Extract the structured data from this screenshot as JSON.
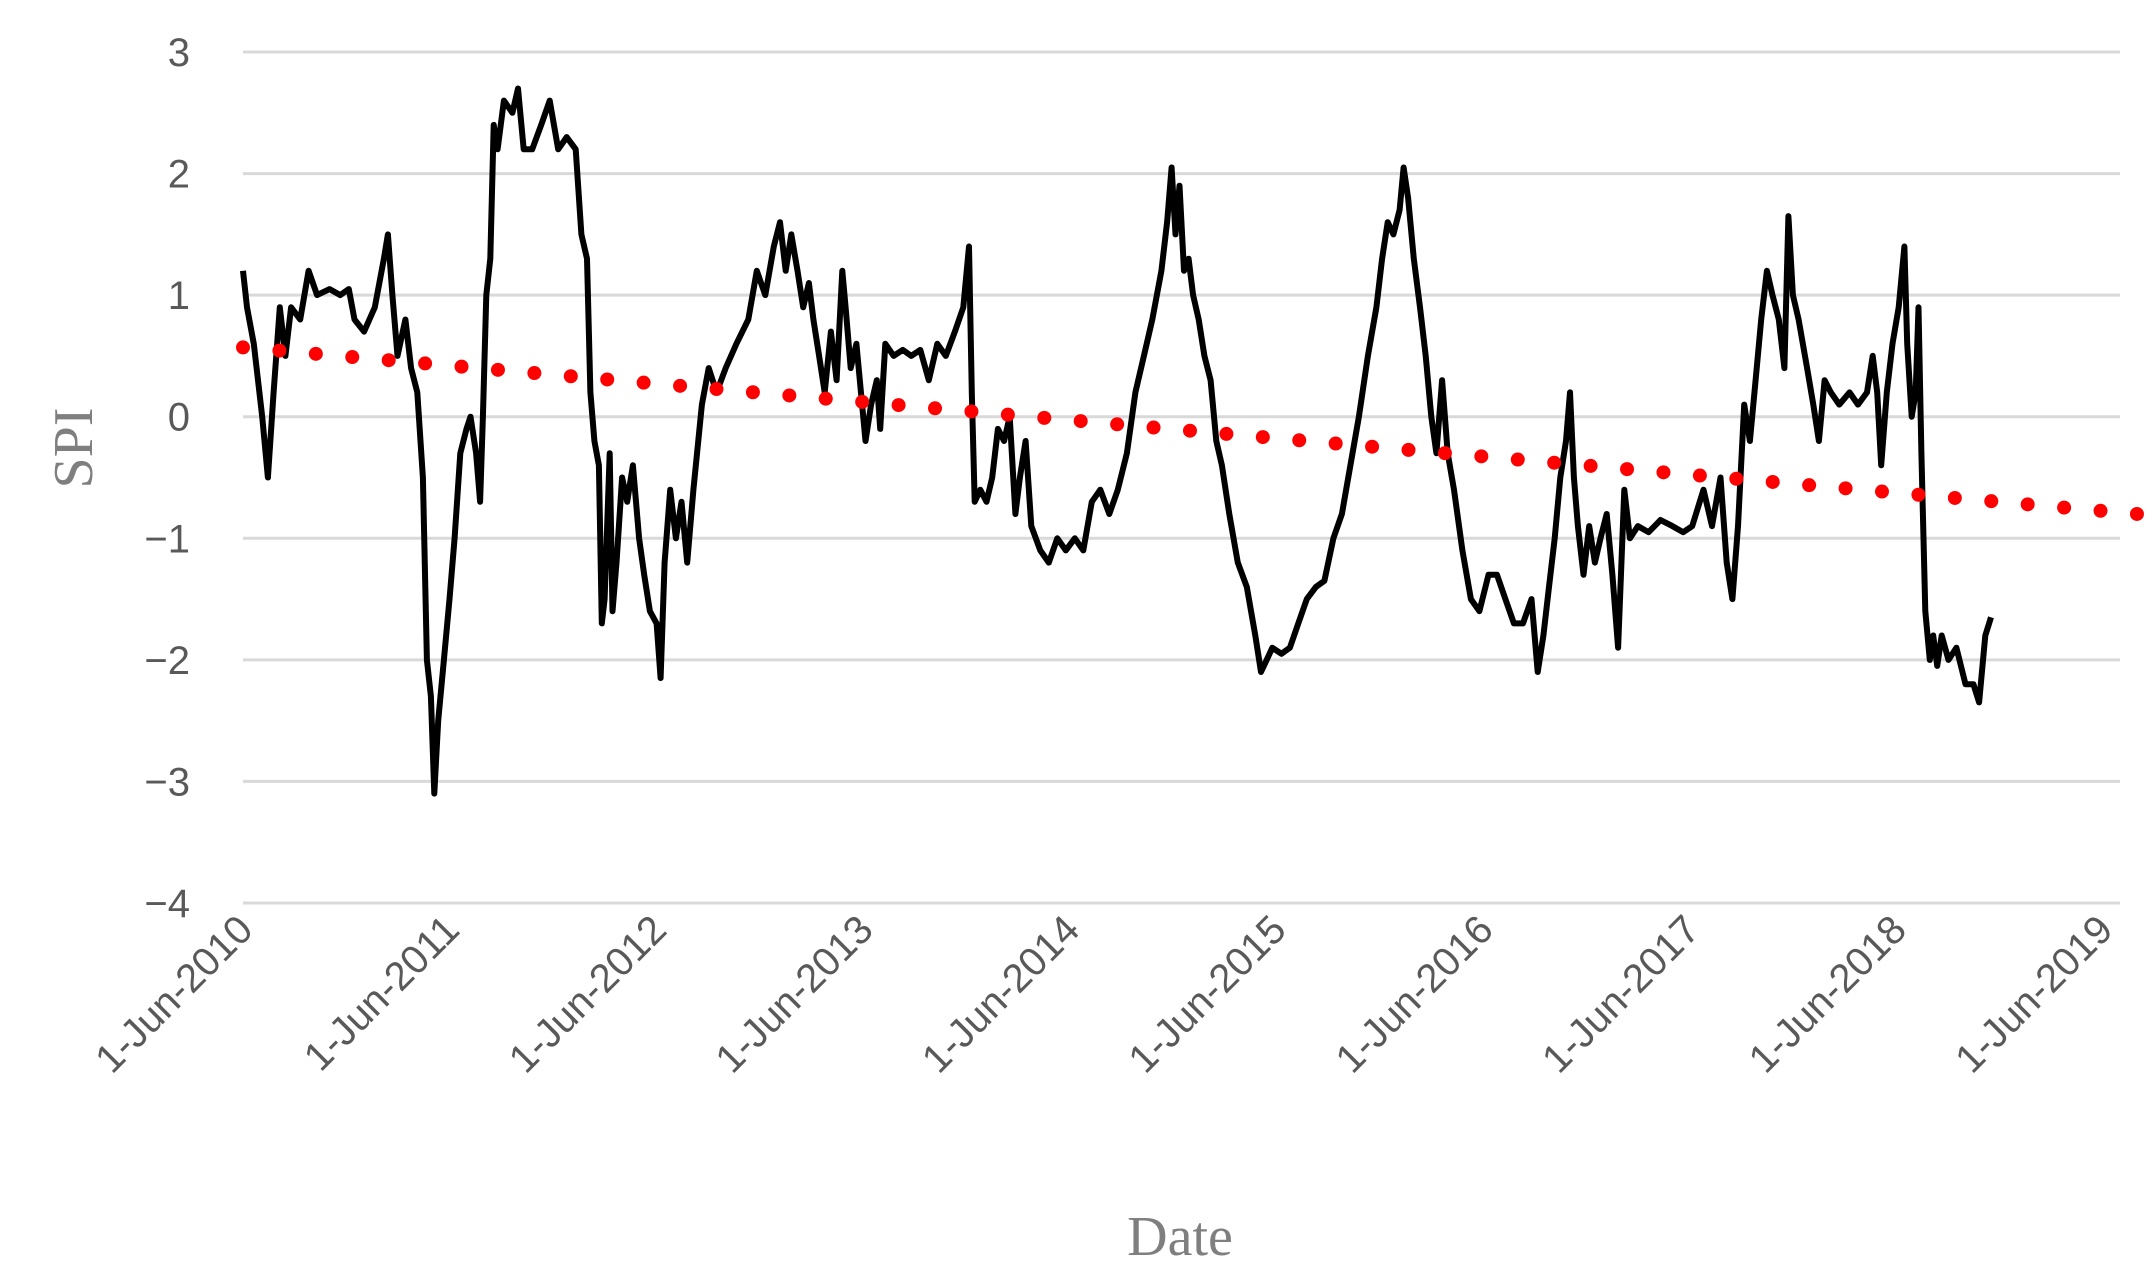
{
  "chart_data": {
    "type": "line",
    "title": "",
    "xlabel": "Date",
    "ylabel": "SPI",
    "ylim": [
      -4,
      3
    ],
    "yticks": [
      "3",
      "2",
      "1",
      "0",
      "−1",
      "−2",
      "−3",
      "−4"
    ],
    "xlim": [
      "2010-06-01",
      "2019-07-31"
    ],
    "xticks": [
      {
        "date": "2010-06-01",
        "label": "1-Jun-2010"
      },
      {
        "date": "2011-06-01",
        "label": "1-Jun-2011"
      },
      {
        "date": "2012-06-01",
        "label": "1-Jun-2012"
      },
      {
        "date": "2013-06-01",
        "label": "1-Jun-2013"
      },
      {
        "date": "2014-06-01",
        "label": "1-Jun-2014"
      },
      {
        "date": "2015-06-01",
        "label": "1-Jun-2015"
      },
      {
        "date": "2016-06-01",
        "label": "1-Jun-2016"
      },
      {
        "date": "2017-06-01",
        "label": "1-Jun-2017"
      },
      {
        "date": "2018-06-01",
        "label": "1-Jun-2018"
      },
      {
        "date": "2019-06-01",
        "label": "1-Jun-2019"
      }
    ],
    "grid": "horizontal",
    "legend": "none",
    "series": [
      {
        "style": "solid",
        "color": "#000000",
        "points": [
          [
            "2010-06-01",
            1.2
          ],
          [
            "2010-06-08",
            0.9
          ],
          [
            "2010-06-20",
            0.6
          ],
          [
            "2010-07-05",
            0.0
          ],
          [
            "2010-07-15",
            -0.5
          ],
          [
            "2010-07-25",
            0.2
          ],
          [
            "2010-08-05",
            0.9
          ],
          [
            "2010-08-15",
            0.5
          ],
          [
            "2010-08-25",
            0.9
          ],
          [
            "2010-09-10",
            0.8
          ],
          [
            "2010-09-25",
            1.2
          ],
          [
            "2010-10-10",
            1.0
          ],
          [
            "2010-11-01",
            1.05
          ],
          [
            "2010-11-20",
            1.0
          ],
          [
            "2010-12-05",
            1.05
          ],
          [
            "2010-12-15",
            0.8
          ],
          [
            "2011-01-01",
            0.7
          ],
          [
            "2011-01-20",
            0.9
          ],
          [
            "2011-02-05",
            1.3
          ],
          [
            "2011-02-12",
            1.5
          ],
          [
            "2011-02-20",
            1.0
          ],
          [
            "2011-03-01",
            0.5
          ],
          [
            "2011-03-15",
            0.8
          ],
          [
            "2011-03-25",
            0.4
          ],
          [
            "2011-04-05",
            0.2
          ],
          [
            "2011-04-15",
            -0.5
          ],
          [
            "2011-04-22",
            -2.0
          ],
          [
            "2011-04-29",
            -2.3
          ],
          [
            "2011-05-05",
            -3.1
          ],
          [
            "2011-05-12",
            -2.5
          ],
          [
            "2011-05-22",
            -2.0
          ],
          [
            "2011-06-01",
            -1.5
          ],
          [
            "2011-06-10",
            -1.0
          ],
          [
            "2011-06-20",
            -0.3
          ],
          [
            "2011-07-01",
            -0.1
          ],
          [
            "2011-07-08",
            0.0
          ],
          [
            "2011-07-18",
            -0.3
          ],
          [
            "2011-07-25",
            -0.7
          ],
          [
            "2011-07-30",
            0.0
          ],
          [
            "2011-08-05",
            1.0
          ],
          [
            "2011-08-12",
            1.3
          ],
          [
            "2011-08-18",
            2.4
          ],
          [
            "2011-08-25",
            2.2
          ],
          [
            "2011-09-05",
            2.6
          ],
          [
            "2011-09-20",
            2.5
          ],
          [
            "2011-09-30",
            2.7
          ],
          [
            "2011-10-10",
            2.2
          ],
          [
            "2011-10-25",
            2.2
          ],
          [
            "2011-11-10",
            2.4
          ],
          [
            "2011-11-25",
            2.6
          ],
          [
            "2011-12-10",
            2.2
          ],
          [
            "2011-12-25",
            2.3
          ],
          [
            "2012-01-10",
            2.2
          ],
          [
            "2012-01-20",
            1.5
          ],
          [
            "2012-01-30",
            1.3
          ],
          [
            "2012-02-05",
            0.2
          ],
          [
            "2012-02-12",
            -0.2
          ],
          [
            "2012-02-20",
            -0.4
          ],
          [
            "2012-02-25",
            -1.7
          ],
          [
            "2012-03-01",
            -1.5
          ],
          [
            "2012-03-10",
            -0.3
          ],
          [
            "2012-03-15",
            -1.6
          ],
          [
            "2012-03-22",
            -1.2
          ],
          [
            "2012-04-01",
            -0.5
          ],
          [
            "2012-04-10",
            -0.7
          ],
          [
            "2012-04-20",
            -0.4
          ],
          [
            "2012-05-01",
            -1.0
          ],
          [
            "2012-05-10",
            -1.3
          ],
          [
            "2012-05-20",
            -1.6
          ],
          [
            "2012-06-01",
            -1.7
          ],
          [
            "2012-06-08",
            -2.15
          ],
          [
            "2012-06-15",
            -1.2
          ],
          [
            "2012-06-25",
            -0.6
          ],
          [
            "2012-07-05",
            -1.0
          ],
          [
            "2012-07-15",
            -0.7
          ],
          [
            "2012-07-25",
            -1.2
          ],
          [
            "2012-08-05",
            -0.6
          ],
          [
            "2012-08-20",
            0.1
          ],
          [
            "2012-09-01",
            0.4
          ],
          [
            "2012-09-15",
            0.2
          ],
          [
            "2012-10-01",
            0.4
          ],
          [
            "2012-10-20",
            0.6
          ],
          [
            "2012-11-10",
            0.8
          ],
          [
            "2012-11-25",
            1.2
          ],
          [
            "2012-12-10",
            1.0
          ],
          [
            "2012-12-25",
            1.4
          ],
          [
            "2013-01-05",
            1.6
          ],
          [
            "2013-01-15",
            1.2
          ],
          [
            "2013-01-25",
            1.5
          ],
          [
            "2013-02-05",
            1.2
          ],
          [
            "2013-02-15",
            0.9
          ],
          [
            "2013-02-25",
            1.1
          ],
          [
            "2013-03-05",
            0.8
          ],
          [
            "2013-03-15",
            0.5
          ],
          [
            "2013-03-25",
            0.2
          ],
          [
            "2013-04-05",
            0.7
          ],
          [
            "2013-04-15",
            0.3
          ],
          [
            "2013-04-25",
            1.2
          ],
          [
            "2013-05-01",
            0.9
          ],
          [
            "2013-05-10",
            0.4
          ],
          [
            "2013-05-20",
            0.6
          ],
          [
            "2013-05-30",
            0.1
          ],
          [
            "2013-06-05",
            -0.2
          ],
          [
            "2013-06-15",
            0.1
          ],
          [
            "2013-06-25",
            0.3
          ],
          [
            "2013-07-01",
            -0.1
          ],
          [
            "2013-07-10",
            0.6
          ],
          [
            "2013-07-25",
            0.5
          ],
          [
            "2013-08-10",
            0.55
          ],
          [
            "2013-08-25",
            0.5
          ],
          [
            "2013-09-10",
            0.55
          ],
          [
            "2013-09-25",
            0.3
          ],
          [
            "2013-10-10",
            0.6
          ],
          [
            "2013-10-25",
            0.5
          ],
          [
            "2013-11-10",
            0.7
          ],
          [
            "2013-11-25",
            0.9
          ],
          [
            "2013-12-05",
            1.4
          ],
          [
            "2013-12-10",
            0.2
          ],
          [
            "2013-12-15",
            -0.7
          ],
          [
            "2013-12-25",
            -0.6
          ],
          [
            "2014-01-05",
            -0.7
          ],
          [
            "2014-01-15",
            -0.5
          ],
          [
            "2014-01-25",
            -0.1
          ],
          [
            "2014-02-05",
            -0.2
          ],
          [
            "2014-02-15",
            0.0
          ],
          [
            "2014-02-25",
            -0.8
          ],
          [
            "2014-03-05",
            -0.5
          ],
          [
            "2014-03-15",
            -0.2
          ],
          [
            "2014-03-25",
            -0.9
          ],
          [
            "2014-04-10",
            -1.1
          ],
          [
            "2014-04-25",
            -1.2
          ],
          [
            "2014-05-10",
            -1.0
          ],
          [
            "2014-05-25",
            -1.1
          ],
          [
            "2014-06-10",
            -1.0
          ],
          [
            "2014-06-25",
            -1.1
          ],
          [
            "2014-07-10",
            -0.7
          ],
          [
            "2014-07-25",
            -0.6
          ],
          [
            "2014-08-10",
            -0.8
          ],
          [
            "2014-08-25",
            -0.6
          ],
          [
            "2014-09-10",
            -0.3
          ],
          [
            "2014-09-25",
            0.2
          ],
          [
            "2014-10-10",
            0.5
          ],
          [
            "2014-10-25",
            0.8
          ],
          [
            "2014-11-10",
            1.2
          ],
          [
            "2014-11-20",
            1.6
          ],
          [
            "2014-11-28",
            2.05
          ],
          [
            "2014-12-05",
            1.5
          ],
          [
            "2014-12-12",
            1.9
          ],
          [
            "2014-12-20",
            1.2
          ],
          [
            "2014-12-28",
            1.3
          ],
          [
            "2015-01-05",
            1.0
          ],
          [
            "2015-01-15",
            0.8
          ],
          [
            "2015-01-25",
            0.5
          ],
          [
            "2015-02-05",
            0.3
          ],
          [
            "2015-02-15",
            -0.2
          ],
          [
            "2015-02-25",
            -0.4
          ],
          [
            "2015-03-10",
            -0.8
          ],
          [
            "2015-03-25",
            -1.2
          ],
          [
            "2015-04-10",
            -1.4
          ],
          [
            "2015-04-25",
            -1.8
          ],
          [
            "2015-05-05",
            -2.1
          ],
          [
            "2015-05-15",
            -2.0
          ],
          [
            "2015-05-25",
            -1.9
          ],
          [
            "2015-06-10",
            -1.95
          ],
          [
            "2015-06-25",
            -1.9
          ],
          [
            "2015-07-10",
            -1.7
          ],
          [
            "2015-07-25",
            -1.5
          ],
          [
            "2015-08-10",
            -1.4
          ],
          [
            "2015-08-25",
            -1.35
          ],
          [
            "2015-09-10",
            -1.0
          ],
          [
            "2015-09-25",
            -0.8
          ],
          [
            "2015-10-10",
            -0.4
          ],
          [
            "2015-10-25",
            0.0
          ],
          [
            "2015-11-10",
            0.5
          ],
          [
            "2015-11-25",
            0.9
          ],
          [
            "2015-12-05",
            1.3
          ],
          [
            "2015-12-15",
            1.6
          ],
          [
            "2015-12-25",
            1.5
          ],
          [
            "2016-01-05",
            1.7
          ],
          [
            "2016-01-12",
            2.05
          ],
          [
            "2016-01-20",
            1.8
          ],
          [
            "2016-01-30",
            1.3
          ],
          [
            "2016-02-10",
            0.9
          ],
          [
            "2016-02-20",
            0.5
          ],
          [
            "2016-03-01",
            0.0
          ],
          [
            "2016-03-10",
            -0.3
          ],
          [
            "2016-03-20",
            0.3
          ],
          [
            "2016-03-30",
            -0.3
          ],
          [
            "2016-04-10",
            -0.6
          ],
          [
            "2016-04-25",
            -1.1
          ],
          [
            "2016-05-10",
            -1.5
          ],
          [
            "2016-05-25",
            -1.6
          ],
          [
            "2016-06-10",
            -1.3
          ],
          [
            "2016-06-25",
            -1.3
          ],
          [
            "2016-07-10",
            -1.5
          ],
          [
            "2016-07-25",
            -1.7
          ],
          [
            "2016-08-10",
            -1.7
          ],
          [
            "2016-08-25",
            -1.5
          ],
          [
            "2016-09-05",
            -2.1
          ],
          [
            "2016-09-15",
            -1.8
          ],
          [
            "2016-09-25",
            -1.4
          ],
          [
            "2016-10-05",
            -1.0
          ],
          [
            "2016-10-15",
            -0.5
          ],
          [
            "2016-10-25",
            -0.2
          ],
          [
            "2016-11-01",
            0.2
          ],
          [
            "2016-11-08",
            -0.5
          ],
          [
            "2016-11-15",
            -0.9
          ],
          [
            "2016-11-25",
            -1.3
          ],
          [
            "2016-12-05",
            -0.9
          ],
          [
            "2016-12-15",
            -1.2
          ],
          [
            "2016-12-25",
            -1.0
          ],
          [
            "2017-01-05",
            -0.8
          ],
          [
            "2017-01-15",
            -1.3
          ],
          [
            "2017-01-25",
            -1.9
          ],
          [
            "2017-02-05",
            -0.6
          ],
          [
            "2017-02-15",
            -1.0
          ],
          [
            "2017-03-01",
            -0.9
          ],
          [
            "2017-03-20",
            -0.95
          ],
          [
            "2017-04-10",
            -0.85
          ],
          [
            "2017-05-01",
            -0.9
          ],
          [
            "2017-05-20",
            -0.95
          ],
          [
            "2017-06-05",
            -0.9
          ],
          [
            "2017-06-25",
            -0.6
          ],
          [
            "2017-07-10",
            -0.9
          ],
          [
            "2017-07-25",
            -0.5
          ],
          [
            "2017-08-05",
            -1.2
          ],
          [
            "2017-08-15",
            -1.5
          ],
          [
            "2017-08-25",
            -0.9
          ],
          [
            "2017-09-05",
            0.1
          ],
          [
            "2017-09-15",
            -0.2
          ],
          [
            "2017-09-25",
            0.3
          ],
          [
            "2017-10-05",
            0.8
          ],
          [
            "2017-10-15",
            1.2
          ],
          [
            "2017-10-25",
            1.0
          ],
          [
            "2017-11-05",
            0.8
          ],
          [
            "2017-11-15",
            0.4
          ],
          [
            "2017-11-22",
            1.65
          ],
          [
            "2017-11-30",
            1.0
          ],
          [
            "2017-12-10",
            0.8
          ],
          [
            "2017-12-25",
            0.4
          ],
          [
            "2018-01-05",
            0.1
          ],
          [
            "2018-01-15",
            -0.2
          ],
          [
            "2018-01-25",
            0.3
          ],
          [
            "2018-02-05",
            0.2
          ],
          [
            "2018-02-20",
            0.1
          ],
          [
            "2018-03-10",
            0.2
          ],
          [
            "2018-03-25",
            0.1
          ],
          [
            "2018-04-10",
            0.2
          ],
          [
            "2018-04-20",
            0.5
          ],
          [
            "2018-04-28",
            0.2
          ],
          [
            "2018-05-05",
            -0.4
          ],
          [
            "2018-05-15",
            0.2
          ],
          [
            "2018-05-25",
            0.6
          ],
          [
            "2018-06-05",
            0.9
          ],
          [
            "2018-06-15",
            1.4
          ],
          [
            "2018-06-20",
            0.6
          ],
          [
            "2018-06-28",
            0.0
          ],
          [
            "2018-07-05",
            0.2
          ],
          [
            "2018-07-10",
            0.9
          ],
          [
            "2018-07-15",
            -0.3
          ],
          [
            "2018-07-22",
            -1.6
          ],
          [
            "2018-07-30",
            -2.0
          ],
          [
            "2018-08-05",
            -1.8
          ],
          [
            "2018-08-12",
            -2.05
          ],
          [
            "2018-08-20",
            -1.8
          ],
          [
            "2018-09-01",
            -2.0
          ],
          [
            "2018-09-15",
            -1.9
          ],
          [
            "2018-10-01",
            -2.2
          ],
          [
            "2018-10-15",
            -2.2
          ],
          [
            "2018-10-25",
            -2.35
          ],
          [
            "2018-11-05",
            -1.8
          ],
          [
            "2018-11-15",
            -1.65
          ]
        ]
      },
      {
        "style": "dotted",
        "color": "#ff0000",
        "kind": "linear-trend",
        "points": [
          [
            "2010-06-01",
            0.57
          ],
          [
            "2019-07-31",
            -0.8
          ]
        ]
      }
    ]
  }
}
